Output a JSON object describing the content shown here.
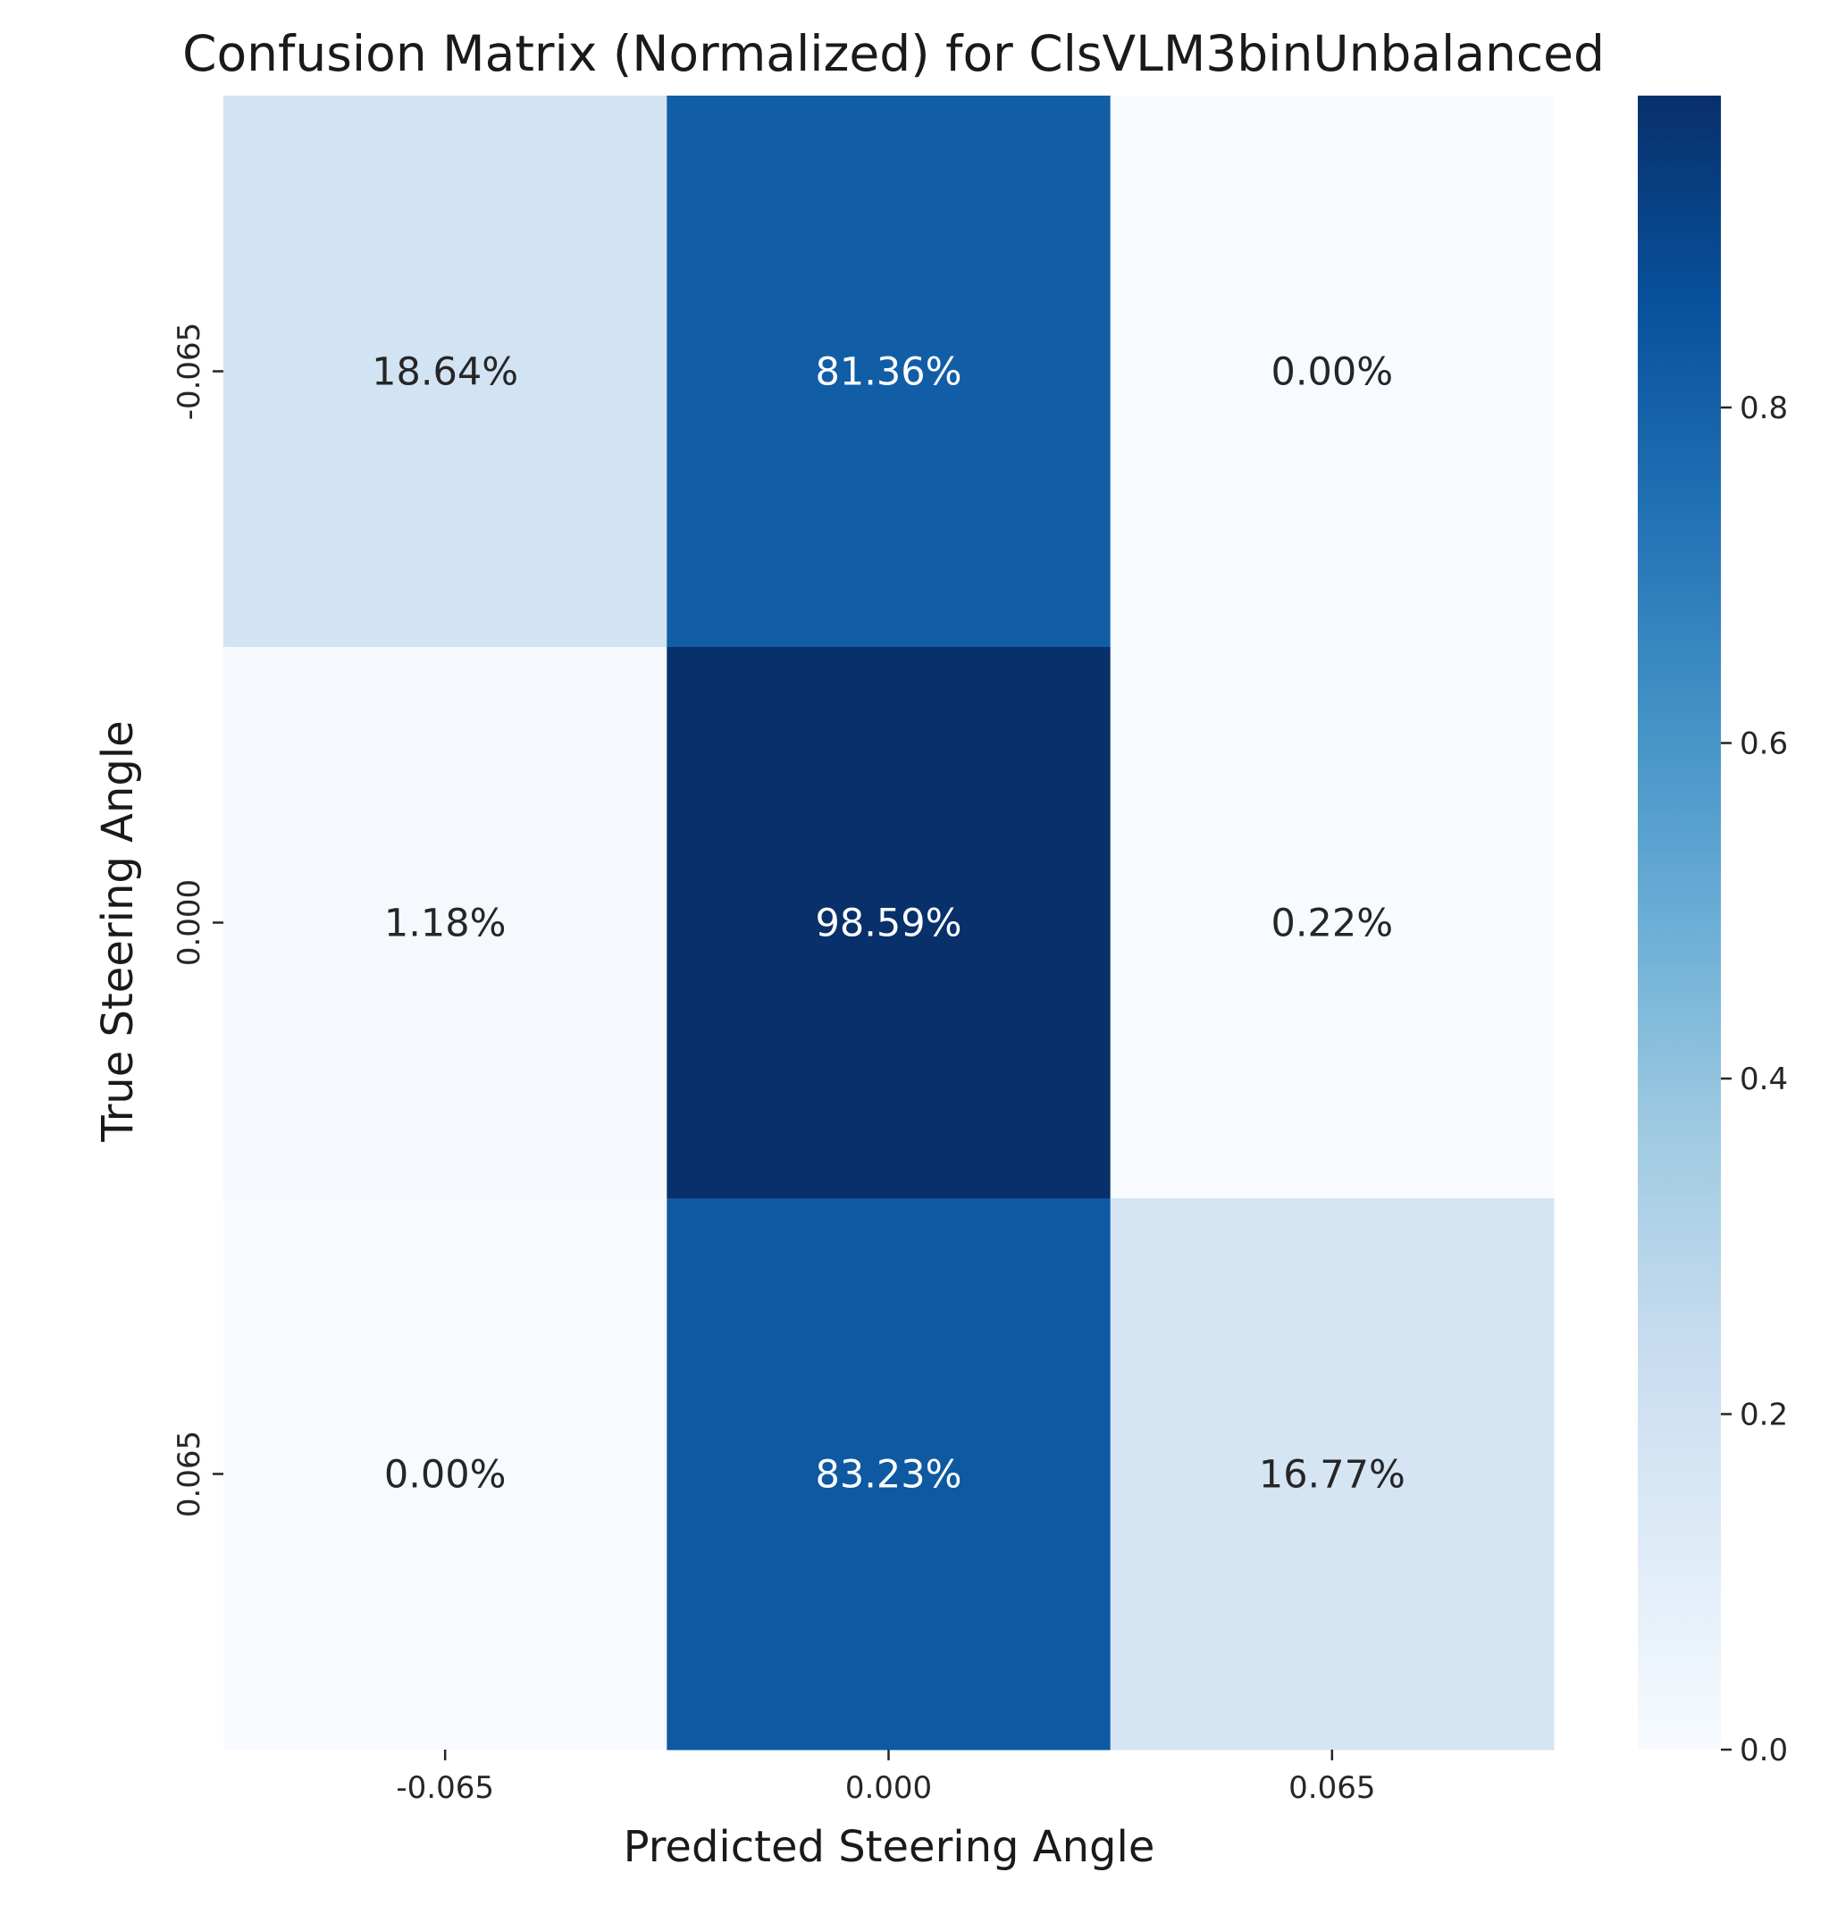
{
  "chart_data": {
    "type": "heatmap",
    "title": "Confusion Matrix (Normalized) for ClsVLM3binUnbalanced",
    "xlabel": "Predicted Steering Angle",
    "ylabel": "True Steering Angle",
    "x_categories": [
      "-0.065",
      "0.000",
      "0.065"
    ],
    "y_categories": [
      "-0.065",
      "0.000",
      "0.065"
    ],
    "values": [
      [
        0.1864,
        0.8136,
        0.0
      ],
      [
        0.0118,
        0.9859,
        0.0022
      ],
      [
        0.0,
        0.8323,
        0.1677
      ]
    ],
    "cell_labels": [
      [
        "18.64%",
        "81.36%",
        "0.00%"
      ],
      [
        "1.18%",
        "98.59%",
        "0.22%"
      ],
      [
        "0.00%",
        "83.23%",
        "16.77%"
      ]
    ],
    "colormap": "Blues",
    "colorbar": {
      "vmin": 0.0,
      "vmax": 0.9859,
      "ticks": [
        0.0,
        0.2,
        0.4,
        0.6,
        0.8
      ],
      "tick_labels": [
        "0.0",
        "0.2",
        "0.4",
        "0.6",
        "0.8"
      ]
    },
    "grid": false,
    "legend": "colorbar-right"
  }
}
